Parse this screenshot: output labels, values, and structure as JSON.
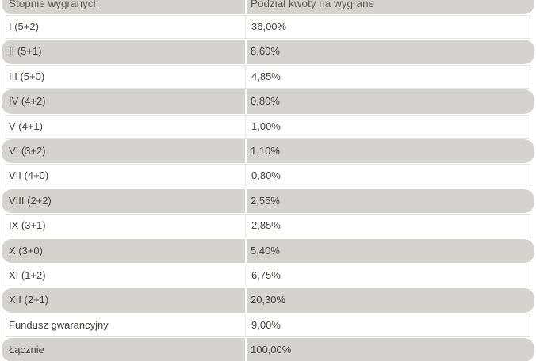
{
  "table": {
    "columns": [
      {
        "label": "Stopnie wygranych"
      },
      {
        "label": "Podział kwoty na wygrane"
      }
    ],
    "rows": [
      {
        "tier": "I (5+2)",
        "share": "36,00%"
      },
      {
        "tier": "II (5+1)",
        "share": "8,60%"
      },
      {
        "tier": "III (5+0)",
        "share": "4,85%"
      },
      {
        "tier": "IV (4+2)",
        "share": "0,80%"
      },
      {
        "tier": "V (4+1)",
        "share": "1,00%"
      },
      {
        "tier": "VI (3+2)",
        "share": "1,10%"
      },
      {
        "tier": "VII (4+0)",
        "share": "0,80%"
      },
      {
        "tier": "VIII (2+2)",
        "share": "2,55%"
      },
      {
        "tier": "IX (3+1)",
        "share": "2,85%"
      },
      {
        "tier": "X (3+0)",
        "share": "5,40%"
      },
      {
        "tier": "XI (1+2)",
        "share": "6,75%"
      },
      {
        "tier": "XII (2+1)",
        "share": "20,30%"
      },
      {
        "tier": "Fundusz gwarancyjny",
        "share": "9,00%"
      },
      {
        "tier": "Łącznie",
        "share": "100,00%"
      }
    ],
    "colors": {
      "stripe_background": "#d5d3cf",
      "row_border": "#e8e6e2",
      "body_text": "#474440",
      "header_text": "#5d5a55",
      "divider_on_stripe": "#ffffff"
    }
  }
}
